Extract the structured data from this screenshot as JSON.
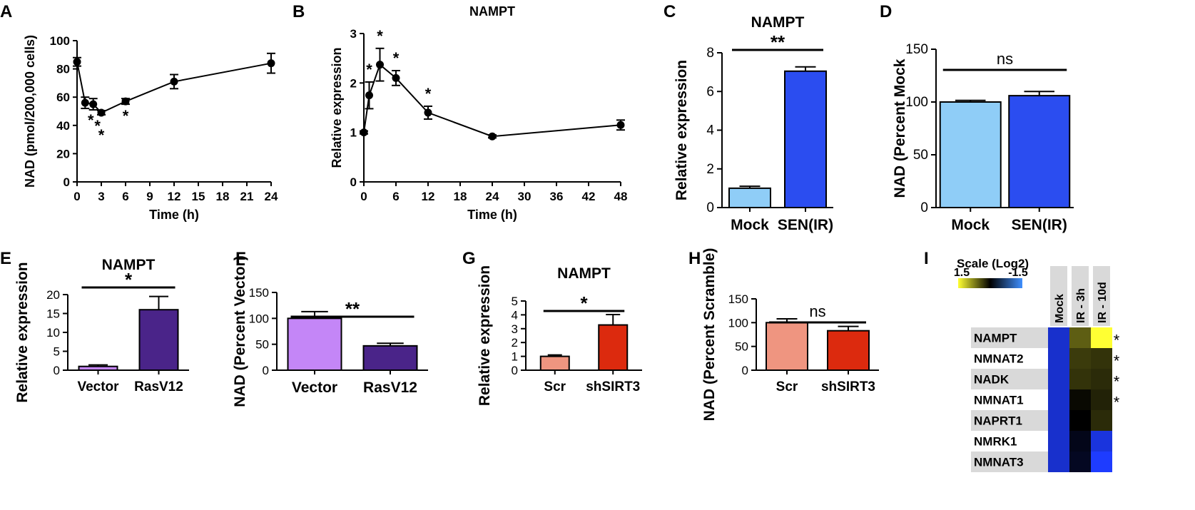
{
  "panels": {
    "A": {
      "letter": "A",
      "chart_data": {
        "type": "line",
        "title": "",
        "xlabel": "Time (h)",
        "ylabel": "NAD (pmol/200,000 cells)",
        "xlim": [
          0,
          24
        ],
        "ylim": [
          0,
          100
        ],
        "xticks": [
          "0",
          "3",
          "6",
          "9",
          "12",
          "15",
          "18",
          "21",
          "24"
        ],
        "yticks": [
          "0",
          "20",
          "40",
          "60",
          "80",
          "100"
        ],
        "x": [
          0,
          1,
          2,
          3,
          6,
          12,
          24
        ],
        "y": [
          85,
          56,
          55,
          49,
          57,
          71,
          84
        ],
        "err": [
          3,
          4,
          4,
          1.5,
          2,
          5,
          7
        ],
        "significance": [
          "",
          "*",
          "*",
          "*",
          "*",
          "",
          ""
        ]
      }
    },
    "B": {
      "letter": "B",
      "chart_data": {
        "type": "line",
        "title": "NAMPT",
        "xlabel": "Time (h)",
        "ylabel": "Relative expression",
        "xlim": [
          0,
          48
        ],
        "ylim": [
          0,
          3
        ],
        "xticks": [
          "0",
          "6",
          "12",
          "18",
          "24",
          "30",
          "36",
          "42",
          "48"
        ],
        "yticks": [
          "0",
          "1",
          "2",
          "3"
        ],
        "x": [
          0,
          1,
          3,
          6,
          12,
          24,
          48
        ],
        "y": [
          1.0,
          1.75,
          2.37,
          2.1,
          1.4,
          0.92,
          1.15
        ],
        "err": [
          0.03,
          0.27,
          0.33,
          0.15,
          0.13,
          0.03,
          0.1
        ],
        "significance": [
          "",
          "*",
          "*",
          "*",
          "*",
          "",
          ""
        ]
      }
    },
    "C": {
      "letter": "C",
      "chart_data": {
        "type": "bar",
        "title": "NAMPT",
        "ylabel": "Relative expression",
        "ylim": [
          0,
          8
        ],
        "yticks": [
          "0",
          "2",
          "4",
          "6",
          "8"
        ],
        "categories": [
          "Mock",
          "SEN(IR)"
        ],
        "values": [
          1.0,
          7.05
        ],
        "err": [
          0.1,
          0.22
        ],
        "colors": [
          "#8fcdf7",
          "#2b4df0"
        ],
        "significance": "**"
      }
    },
    "D": {
      "letter": "D",
      "chart_data": {
        "type": "bar",
        "title": "",
        "ylabel": "NAD (Percent Mock",
        "ylim": [
          0,
          150
        ],
        "yticks": [
          "0",
          "50",
          "100",
          "150"
        ],
        "categories": [
          "Mock",
          "SEN(IR)"
        ],
        "values": [
          100,
          106
        ],
        "err": [
          1.5,
          4
        ],
        "colors": [
          "#8fcdf7",
          "#2b4df0"
        ],
        "significance": "ns"
      }
    },
    "E": {
      "letter": "E",
      "chart_data": {
        "type": "bar",
        "title": "NAMPT",
        "ylabel": "Relative expression",
        "ylim": [
          0,
          20
        ],
        "yticks": [
          "0",
          "5",
          "10",
          "15",
          "20"
        ],
        "categories": [
          "Vector",
          "RasV12"
        ],
        "values": [
          1.0,
          16.0
        ],
        "err": [
          0.4,
          3.5
        ],
        "colors": [
          "#c486f7",
          "#4a2489"
        ],
        "significance": "*"
      }
    },
    "F": {
      "letter": "F",
      "chart_data": {
        "type": "bar",
        "title": "",
        "ylabel": "NAD (Percent Vector)",
        "ylim": [
          0,
          150
        ],
        "yticks": [
          "0",
          "50",
          "100",
          "150"
        ],
        "categories": [
          "Vector",
          "RasV12"
        ],
        "values": [
          100,
          47
        ],
        "err": [
          13,
          5
        ],
        "colors": [
          "#c486f7",
          "#4a2489"
        ],
        "significance": "**"
      }
    },
    "G": {
      "letter": "G",
      "chart_data": {
        "type": "bar",
        "title": "NAMPT",
        "ylabel": "Relative expression",
        "ylim": [
          0,
          5
        ],
        "yticks": [
          "0",
          "1",
          "2",
          "3",
          "4",
          "5"
        ],
        "categories": [
          "Scr",
          "shSIRT3"
        ],
        "values": [
          1.0,
          3.27
        ],
        "err": [
          0.1,
          0.75
        ],
        "colors": [
          "#ef9580",
          "#dc2a0e"
        ],
        "significance": "*"
      }
    },
    "H": {
      "letter": "H",
      "chart_data": {
        "type": "bar",
        "title": "",
        "ylabel": "NAD (Percent Scramble)",
        "ylim": [
          0,
          150
        ],
        "yticks": [
          "0",
          "50",
          "100",
          "150"
        ],
        "categories": [
          "Scr",
          "shSIRT3"
        ],
        "values": [
          100,
          83
        ],
        "err": [
          8,
          9
        ],
        "colors": [
          "#ef9580",
          "#dc2a0e"
        ],
        "significance": "ns"
      }
    },
    "I": {
      "letter": "I",
      "chart_data": {
        "type": "heatmap",
        "scale_title": "Scale (Log2)",
        "scale_max": "1.5",
        "scale_min": "-1.5",
        "columns": [
          "Mock",
          "IR - 3h",
          "IR - 10d"
        ],
        "rows": [
          "NAMPT",
          "NMNAT2",
          "NADK",
          "NMNAT1",
          "NAPRT1",
          "NMRK1",
          "NMNAT3"
        ],
        "values": [
          [
            -1.2,
            0.55,
            1.5
          ],
          [
            -1.2,
            0.35,
            0.3
          ],
          [
            -1.2,
            0.3,
            0.25
          ],
          [
            -1.2,
            0.05,
            0.2
          ],
          [
            -1.2,
            0.0,
            0.25
          ],
          [
            -1.2,
            -0.15,
            -1.3
          ],
          [
            -1.2,
            -0.2,
            -1.5
          ]
        ],
        "significance": [
          "*",
          "*",
          "*",
          "*",
          "",
          "",
          ""
        ]
      }
    }
  }
}
